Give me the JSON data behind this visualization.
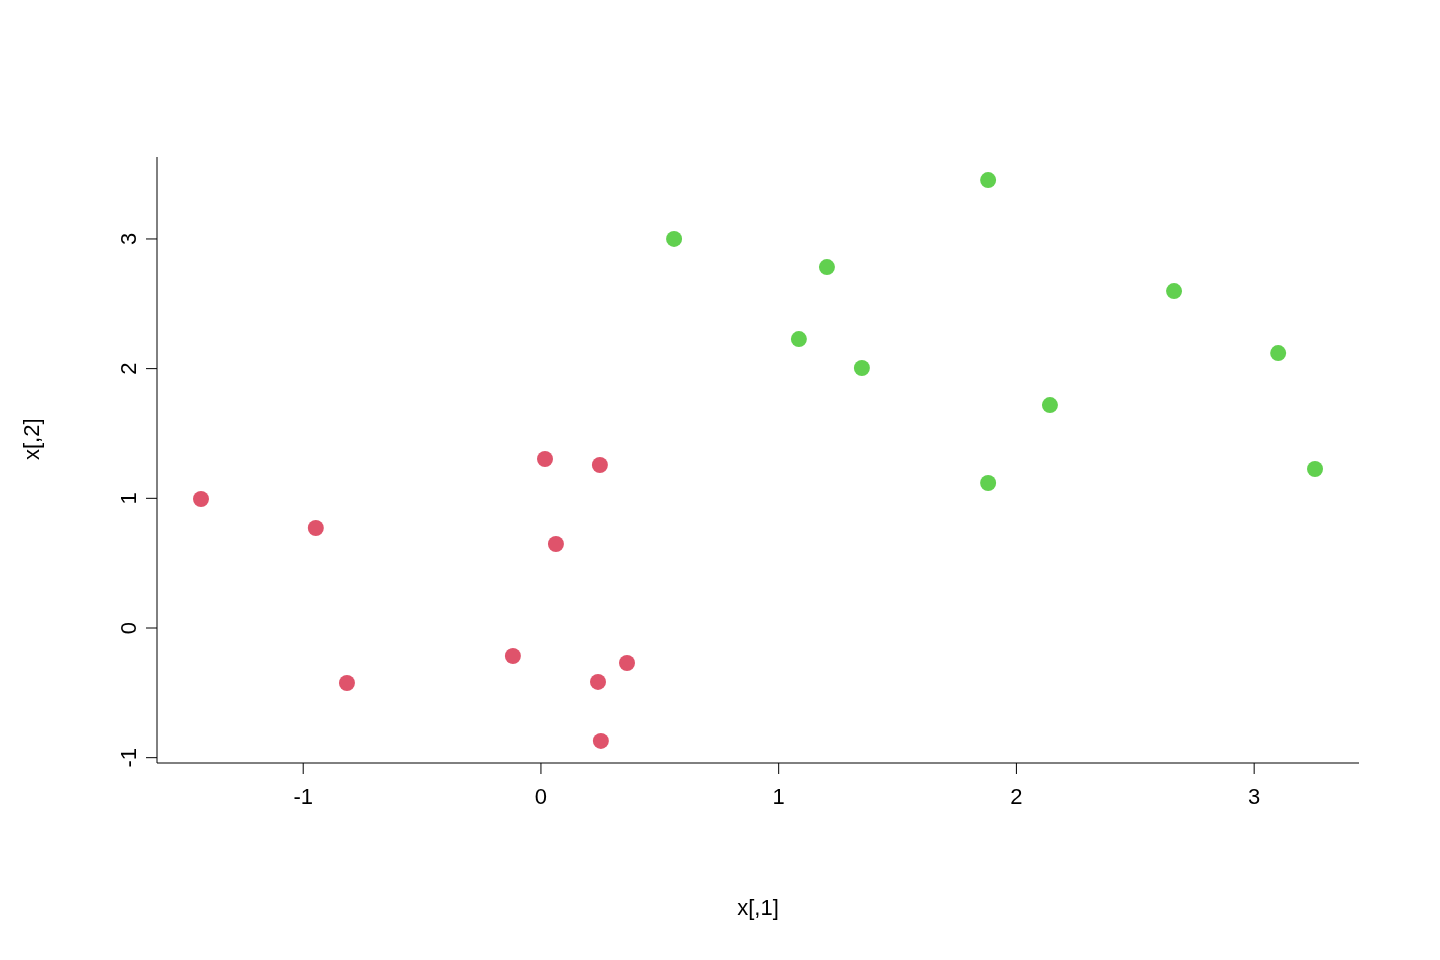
{
  "chart_data": {
    "type": "scatter",
    "xlabel": "x[,1]",
    "ylabel": "x[,2]",
    "xlim": [
      -1.615,
      3.441
    ],
    "ylim": [
      -1.041,
      3.632
    ],
    "xticks": [
      -1,
      0,
      1,
      2,
      3
    ],
    "yticks": [
      -1,
      0,
      1,
      2,
      3
    ],
    "grid": false,
    "legend": false,
    "marker": "circle",
    "series": [
      {
        "color": "#df536b",
        "x": [
          -1.43,
          -0.947,
          -0.816,
          -0.118,
          0.017,
          0.063,
          0.248,
          0.24,
          0.362,
          0.252
        ],
        "values": [
          0.995,
          0.771,
          -0.424,
          -0.216,
          1.303,
          0.648,
          1.257,
          -0.416,
          -0.27,
          -0.871
        ]
      },
      {
        "color": "#61d04f",
        "x": [
          0.56,
          1.203,
          1.085,
          1.35,
          1.881,
          1.881,
          2.141,
          2.663,
          3.101,
          3.256
        ],
        "values": [
          3.0,
          2.783,
          2.228,
          2.005,
          3.454,
          1.118,
          1.719,
          2.598,
          2.12,
          1.226
        ]
      }
    ]
  }
}
